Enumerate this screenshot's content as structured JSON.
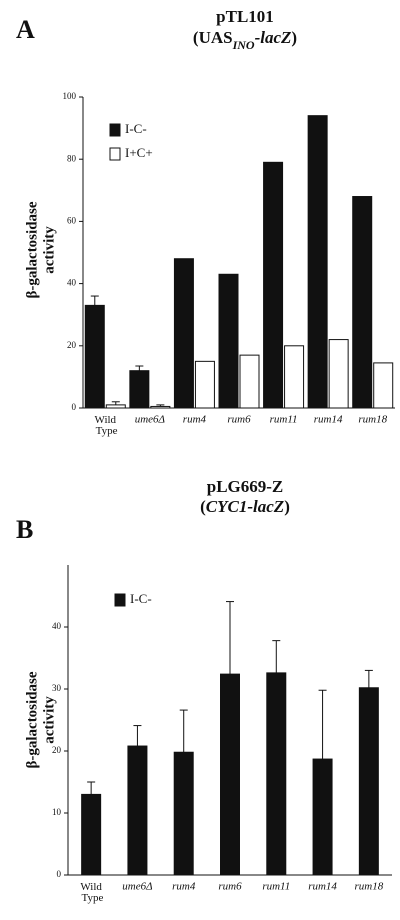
{
  "chart_data": [
    {
      "type": "bar",
      "panel_label": "A",
      "title": "pTL101",
      "subtitle_parts": [
        "(UAS",
        "INO",
        "-lacZ",
        ")"
      ],
      "ylabel_lines": [
        "β-galactosidase",
        "activity"
      ],
      "categories": [
        "Wild Type",
        "ume6Δ",
        "rum4",
        "rum6",
        "rum11",
        "rum14",
        "rum18"
      ],
      "series": [
        {
          "name": "I-C-",
          "color": "#111111",
          "values": [
            33,
            12,
            48,
            43,
            79,
            94,
            68
          ],
          "errors": [
            3,
            1.5,
            null,
            null,
            null,
            null,
            null
          ]
        },
        {
          "name": "I+C+",
          "color": "#ffffff",
          "values": [
            1,
            0.5,
            15,
            17,
            20,
            22,
            14.5
          ],
          "errors": [
            1,
            0.5,
            null,
            null,
            null,
            null,
            null
          ]
        }
      ],
      "ylim": [
        0,
        100
      ],
      "yticks": [
        0,
        20,
        40,
        60,
        80,
        100
      ],
      "legend": "top-left"
    },
    {
      "type": "bar",
      "panel_label": "B",
      "title": "pLG669-Z",
      "subtitle_parts": [
        "(",
        "CYC1-lacZ",
        ")"
      ],
      "ylabel_lines": [
        "β-galactosidase",
        "activity"
      ],
      "categories": [
        "Wild Type",
        "ume6Δ",
        "rum4",
        "rum6",
        "rum11",
        "rum14",
        "rum18"
      ],
      "series": [
        {
          "name": "I-C-",
          "color": "#111111",
          "values": [
            13,
            20.8,
            19.8,
            32.4,
            32.6,
            18.7,
            30.2
          ],
          "errors": [
            2,
            3.3,
            6.8,
            11.7,
            5.2,
            11.1,
            2.8
          ]
        }
      ],
      "ylim": [
        0,
        50
      ],
      "yticks": [
        0,
        10,
        20,
        30,
        40
      ],
      "legend": "top-left"
    }
  ]
}
